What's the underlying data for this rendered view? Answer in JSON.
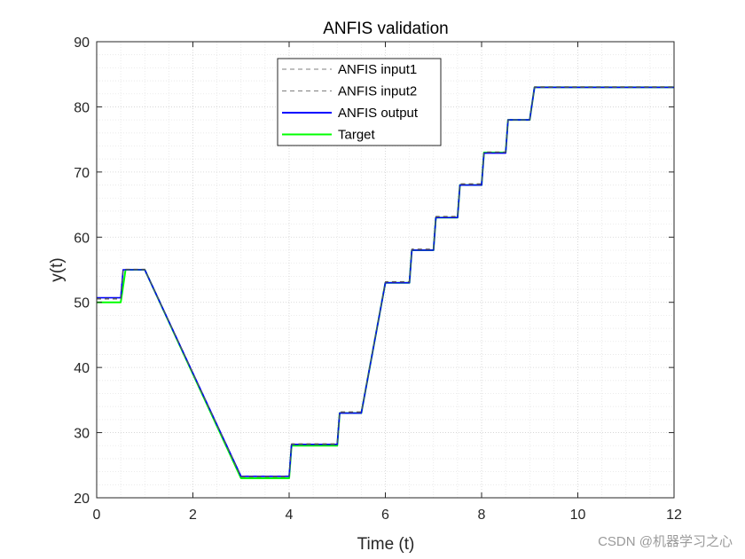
{
  "chart_data": {
    "type": "line",
    "title": "ANFIS validation",
    "xlabel": "Time (t)",
    "ylabel": "y(t)",
    "xlim": [
      0,
      12
    ],
    "ylim": [
      20,
      90
    ],
    "xticks": [
      0,
      2,
      4,
      6,
      8,
      10,
      12
    ],
    "yticks": [
      20,
      30,
      40,
      50,
      60,
      70,
      80,
      90
    ],
    "grid": true,
    "minor_grid": true,
    "legend_position": "top-center",
    "series": [
      {
        "name": "ANFIS input1",
        "style": "dashed",
        "color": "#555555",
        "x": [
          0,
          0.5,
          0.55,
          1.0,
          3.0,
          4.0,
          4.05,
          5.0,
          5.05,
          5.5,
          6.0,
          6.5,
          6.55,
          7.0,
          7.05,
          7.5,
          7.55,
          8.0,
          8.05,
          8.5,
          8.55,
          9.0,
          9.1,
          12
        ],
        "values": [
          50.6,
          50.6,
          55.1,
          55.1,
          23.3,
          23.3,
          28.3,
          28.3,
          33.2,
          33.2,
          53.2,
          53.2,
          58.2,
          58.2,
          63.2,
          63.2,
          68.2,
          68.2,
          73.1,
          73.1,
          78.0,
          78.0,
          83.1,
          83.1
        ]
      },
      {
        "name": "ANFIS input2",
        "style": "dashed",
        "color": "#555555",
        "x": [
          0,
          0.5,
          0.55,
          1.0,
          3.0,
          4.0,
          4.05,
          5.0,
          5.05,
          5.5,
          6.0,
          6.5,
          6.55,
          7.0,
          7.05,
          7.5,
          7.55,
          8.0,
          8.05,
          8.5,
          8.55,
          9.0,
          9.1,
          12
        ],
        "values": [
          50.5,
          50.5,
          55.0,
          55.0,
          23.2,
          23.2,
          28.2,
          28.2,
          33.1,
          33.1,
          53.1,
          53.1,
          58.1,
          58.1,
          63.1,
          63.1,
          68.1,
          68.1,
          73.0,
          73.0,
          78.0,
          78.0,
          83.0,
          83.0
        ]
      },
      {
        "name": "ANFIS output",
        "style": "solid",
        "color": "#0000ff",
        "x": [
          0,
          0.5,
          0.55,
          1.0,
          3.0,
          4.0,
          4.05,
          5.0,
          5.05,
          5.5,
          6.0,
          6.5,
          6.55,
          7.0,
          7.05,
          7.5,
          7.55,
          8.0,
          8.05,
          8.5,
          8.55,
          9.0,
          9.1,
          12
        ],
        "values": [
          50.7,
          50.7,
          55.0,
          55.0,
          23.3,
          23.3,
          28.2,
          28.2,
          33.0,
          33.0,
          53.0,
          53.0,
          58.0,
          58.0,
          63.0,
          63.0,
          68.0,
          68.0,
          72.9,
          72.9,
          78.0,
          78.0,
          83.0,
          83.0
        ]
      },
      {
        "name": "Target",
        "style": "solid",
        "color": "#00ff00",
        "x": [
          0,
          0.5,
          0.6,
          1.0,
          3.0,
          4.0,
          4.05,
          5.0,
          5.05,
          5.5,
          6.0,
          6.5,
          6.55,
          7.0,
          7.05,
          7.5,
          7.55,
          8.0,
          8.05,
          8.5,
          8.55,
          9.0,
          9.1,
          12
        ],
        "values": [
          50.0,
          50.0,
          55.0,
          55.0,
          23.0,
          23.0,
          28.0,
          28.0,
          33.0,
          33.0,
          53.0,
          53.0,
          58.0,
          58.0,
          63.0,
          63.0,
          68.0,
          68.0,
          73.0,
          73.0,
          78.0,
          78.0,
          83.0,
          83.0
        ]
      }
    ]
  },
  "watermark": "CSDN @机器学习之心"
}
